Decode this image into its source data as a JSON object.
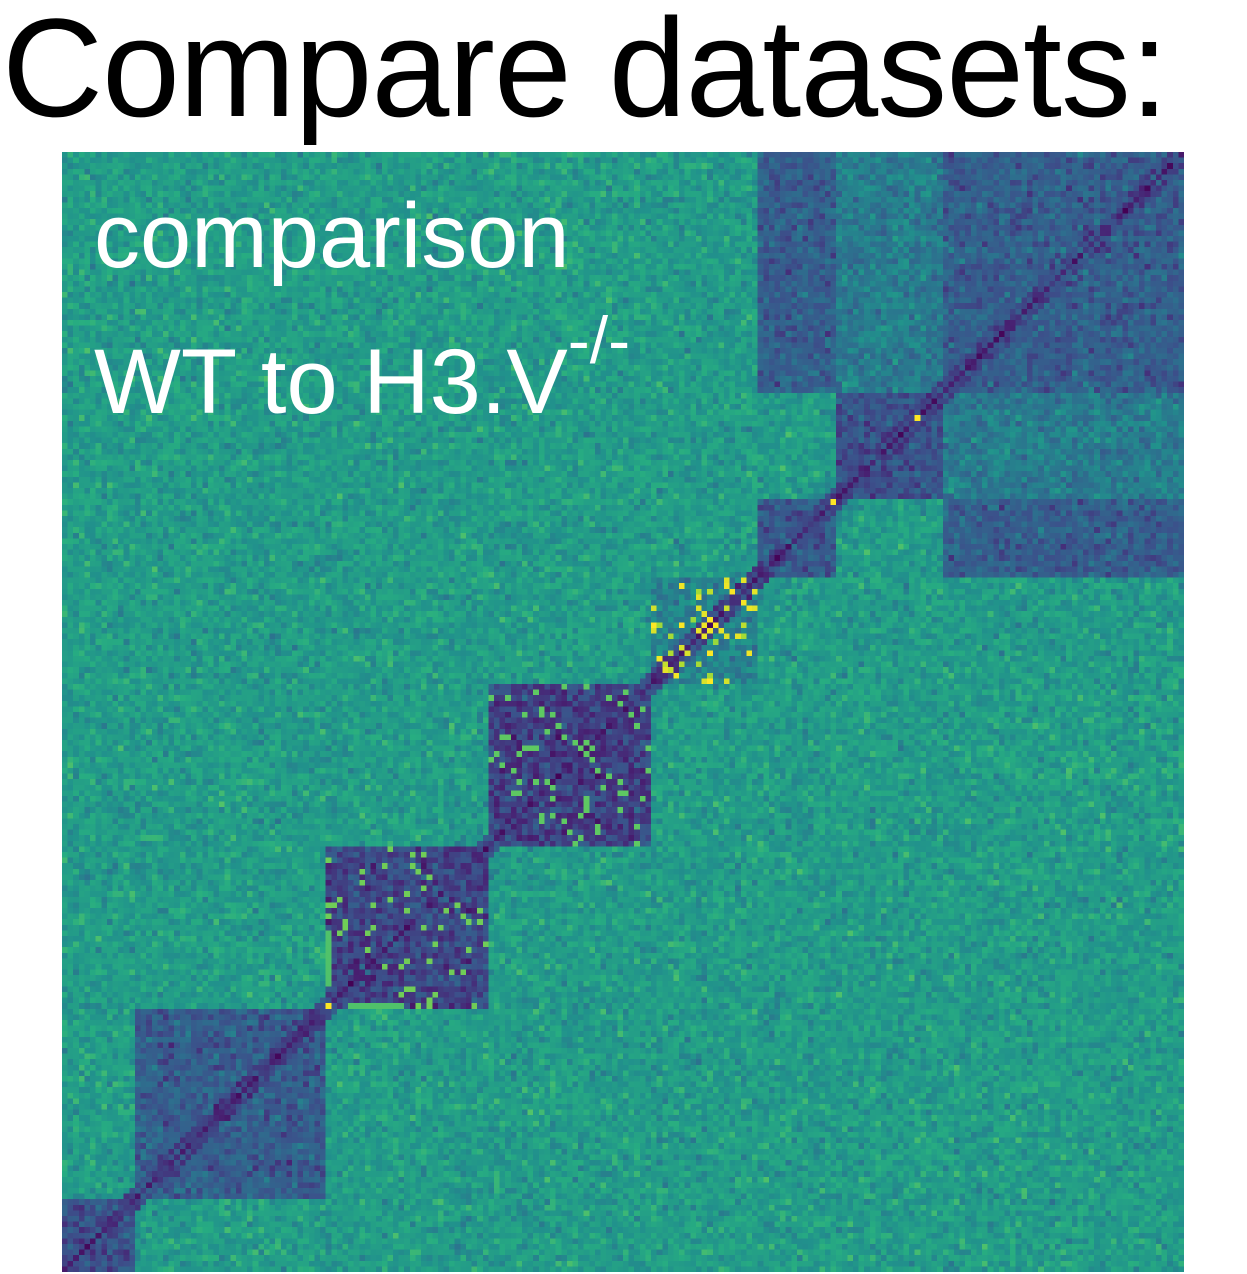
{
  "title": "Compare datasets:",
  "overlay": {
    "line1": "comparison",
    "line2_main": "WT to H3.V",
    "line2_sup": "-/-"
  },
  "colors": {
    "colormap": "viridis",
    "text_overlay": "#ffffff",
    "title_text": "#000000"
  },
  "chart_data": {
    "type": "heatmap",
    "colormap": "viridis",
    "matrix": "symmetric contact-frequency comparison map",
    "bins": 200,
    "diagonal": "low",
    "domains": [
      {
        "start": 0,
        "end": 13,
        "level": 0.25
      },
      {
        "start": 13,
        "end": 47,
        "level": 0.3
      },
      {
        "start": 47,
        "end": 76,
        "level": 0.22
      },
      {
        "start": 76,
        "end": 105,
        "level": 0.2
      },
      {
        "start": 105,
        "end": 124,
        "level": 0.45
      },
      {
        "start": 124,
        "end": 138,
        "level": 0.28
      },
      {
        "start": 138,
        "end": 157,
        "level": 0.26
      },
      {
        "start": 157,
        "end": 200,
        "level": 0.3
      }
    ],
    "enriched_points": [
      {
        "i": 47,
        "j": 47
      },
      {
        "i": 137,
        "j": 137
      },
      {
        "i": 152,
        "j": 152
      },
      {
        "i": 105,
        "j": 115
      },
      {
        "i": 115,
        "j": 110
      }
    ],
    "background_level": 0.55,
    "title": "",
    "xlabel": "",
    "ylabel": ""
  }
}
